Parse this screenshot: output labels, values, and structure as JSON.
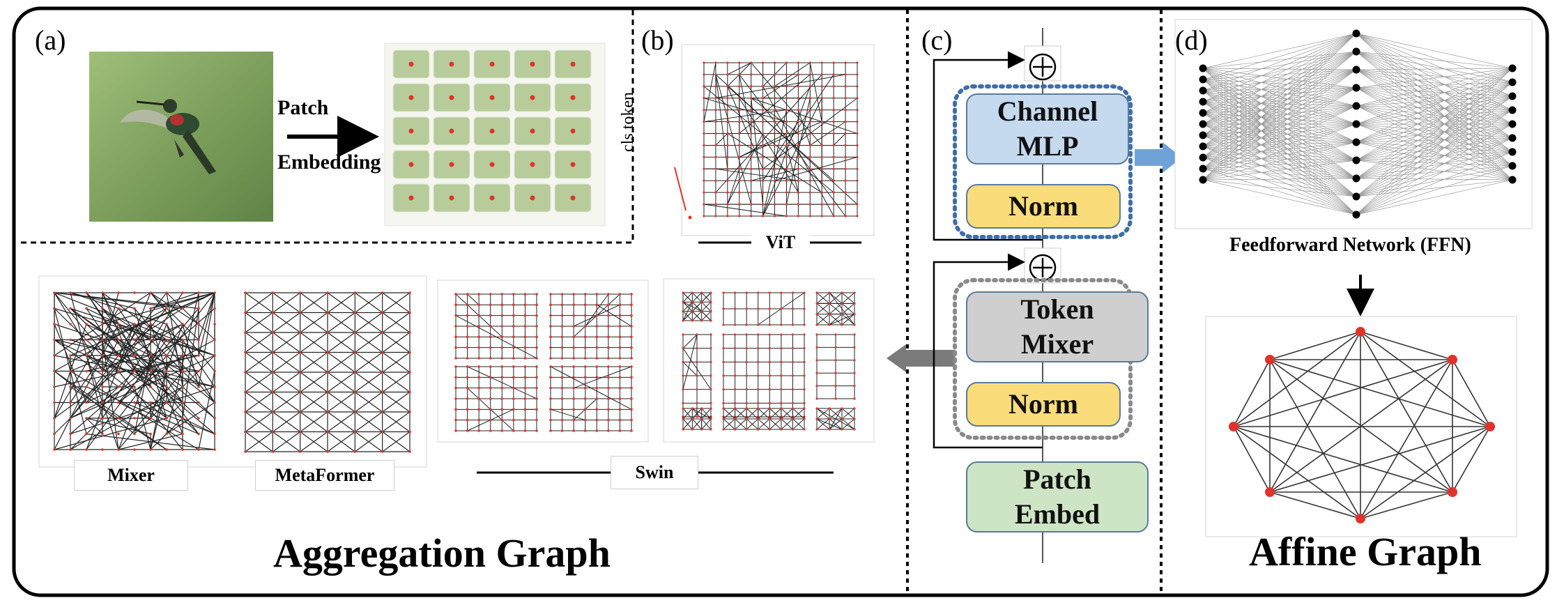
{
  "panels": {
    "a": {
      "label": "(a)",
      "arrow_text_top": "Patch",
      "arrow_text_bottom": "Embedding"
    },
    "b": {
      "label": "(b)",
      "cls_token": "cls token",
      "caption": "ViT"
    },
    "c": {
      "label": "(c)",
      "blocks": {
        "channel_mlp": "Channel MLP",
        "norm_top": "Norm",
        "token_mixer": "Token Mixer",
        "norm_bottom": "Norm",
        "patch_embed": "Patch Embed"
      },
      "add_symbol": "⊕"
    },
    "d": {
      "label": "(d)",
      "ffn_caption": "Feedforward Network (FFN)",
      "title": "Affine Graph"
    },
    "aggregation": {
      "mixer_caption": "Mixer",
      "metaformer_caption": "MetaFormer",
      "swin_caption": "Swin",
      "title": "Aggregation Graph"
    }
  },
  "colors": {
    "channel_mlp_fill": "#c5d9ef",
    "norm_fill": "#fbdc7a",
    "token_mixer_fill": "#cfcfcf",
    "patch_embed_fill": "#cde5c4",
    "node_red": "#e0332c",
    "blue_arrow": "#6fa3d8",
    "gray_arrow": "#7a7a7a",
    "blue_dotted": "#3f6ea8",
    "gray_dotted": "#8a8a8a"
  }
}
